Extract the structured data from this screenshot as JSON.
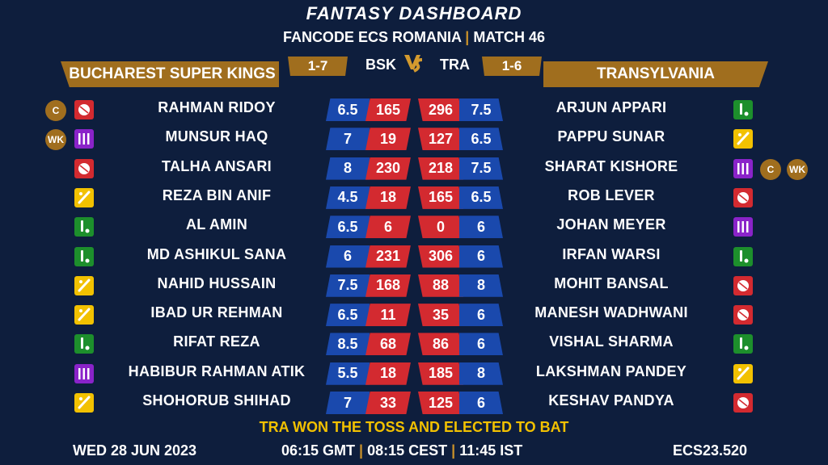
{
  "header": {
    "title": "FANTASY DASHBOARD",
    "match_left": "FANCODE ECS ROMANIA",
    "separator": "|",
    "match_right": "MATCH 46"
  },
  "teams": {
    "left": {
      "name": "BUCHAREST SUPER KINGS",
      "abbr": "BSK",
      "record": "1-7"
    },
    "right": {
      "name": "TRANSYLVANIA",
      "abbr": "TRA",
      "record": "1-6"
    },
    "vs": "VS"
  },
  "colors": {
    "gold": "#a06e1e",
    "blue": "#1a49ad",
    "red": "#d32a30",
    "background": "#0e1e3d",
    "bowler_icon": "#d32a30",
    "batter_icon": "#1d8f2c",
    "allrounder_icon": "#f2c100",
    "keeper_icon": "#8a23c9"
  },
  "rows": [
    {
      "left": {
        "name": "RAHMAN RIDOY",
        "role": "bowler",
        "credit": "6.5",
        "points": "165",
        "badges": [
          "C"
        ]
      },
      "right": {
        "name": "ARJUN APPARI",
        "role": "batter",
        "credit": "7.5",
        "points": "296",
        "badges": []
      }
    },
    {
      "left": {
        "name": "MUNSUR HAQ",
        "role": "keeper",
        "credit": "7",
        "points": "19",
        "badges": [
          "WK"
        ]
      },
      "right": {
        "name": "PAPPU SUNAR",
        "role": "allrounder",
        "credit": "6.5",
        "points": "127",
        "badges": []
      }
    },
    {
      "left": {
        "name": "TALHA ANSARI",
        "role": "bowler",
        "credit": "8",
        "points": "230",
        "badges": []
      },
      "right": {
        "name": "SHARAT KISHORE",
        "role": "keeper",
        "credit": "7.5",
        "points": "218",
        "badges": [
          "C",
          "WK"
        ]
      }
    },
    {
      "left": {
        "name": "REZA BIN ANIF",
        "role": "allrounder",
        "credit": "4.5",
        "points": "18",
        "badges": []
      },
      "right": {
        "name": "ROB LEVER",
        "role": "bowler",
        "credit": "6.5",
        "points": "165",
        "badges": []
      }
    },
    {
      "left": {
        "name": "AL AMIN",
        "role": "batter",
        "credit": "6.5",
        "points": "6",
        "badges": []
      },
      "right": {
        "name": "JOHAN MEYER",
        "role": "keeper",
        "credit": "6",
        "points": "0",
        "badges": []
      }
    },
    {
      "left": {
        "name": "MD ASHIKUL SANA",
        "role": "batter",
        "credit": "6",
        "points": "231",
        "badges": []
      },
      "right": {
        "name": "IRFAN WARSI",
        "role": "batter",
        "credit": "6",
        "points": "306",
        "badges": []
      }
    },
    {
      "left": {
        "name": "NAHID HUSSAIN",
        "role": "allrounder",
        "credit": "7.5",
        "points": "168",
        "badges": []
      },
      "right": {
        "name": "MOHIT BANSAL",
        "role": "bowler",
        "credit": "8",
        "points": "88",
        "badges": []
      }
    },
    {
      "left": {
        "name": "IBAD UR REHMAN",
        "role": "allrounder",
        "credit": "6.5",
        "points": "11",
        "badges": []
      },
      "right": {
        "name": "MANESH WADHWANI",
        "role": "bowler",
        "credit": "6",
        "points": "35",
        "badges": []
      }
    },
    {
      "left": {
        "name": "RIFAT REZA",
        "role": "batter",
        "credit": "8.5",
        "points": "68",
        "badges": []
      },
      "right": {
        "name": "VISHAL SHARMA",
        "role": "batter",
        "credit": "6",
        "points": "86",
        "badges": []
      }
    },
    {
      "left": {
        "name": "HABIBUR RAHMAN ATIK",
        "role": "keeper",
        "credit": "5.5",
        "points": "18",
        "badges": []
      },
      "right": {
        "name": "LAKSHMAN PANDEY",
        "role": "allrounder",
        "credit": "8",
        "points": "185",
        "badges": []
      }
    },
    {
      "left": {
        "name": "SHOHORUB SHIHAD",
        "role": "allrounder",
        "credit": "7",
        "points": "33",
        "badges": []
      },
      "right": {
        "name": "KESHAV PANDYA",
        "role": "bowler",
        "credit": "6",
        "points": "125",
        "badges": []
      }
    }
  ],
  "footer": {
    "toss": "TRA WON THE TOSS AND ELECTED TO BAT",
    "date": "WED 28 JUN 2023",
    "time_gmt": "06:15 GMT",
    "time_cest": "08:15 CEST",
    "time_ist": "11:45 IST",
    "separator": "|",
    "code": "ECS23.520"
  }
}
